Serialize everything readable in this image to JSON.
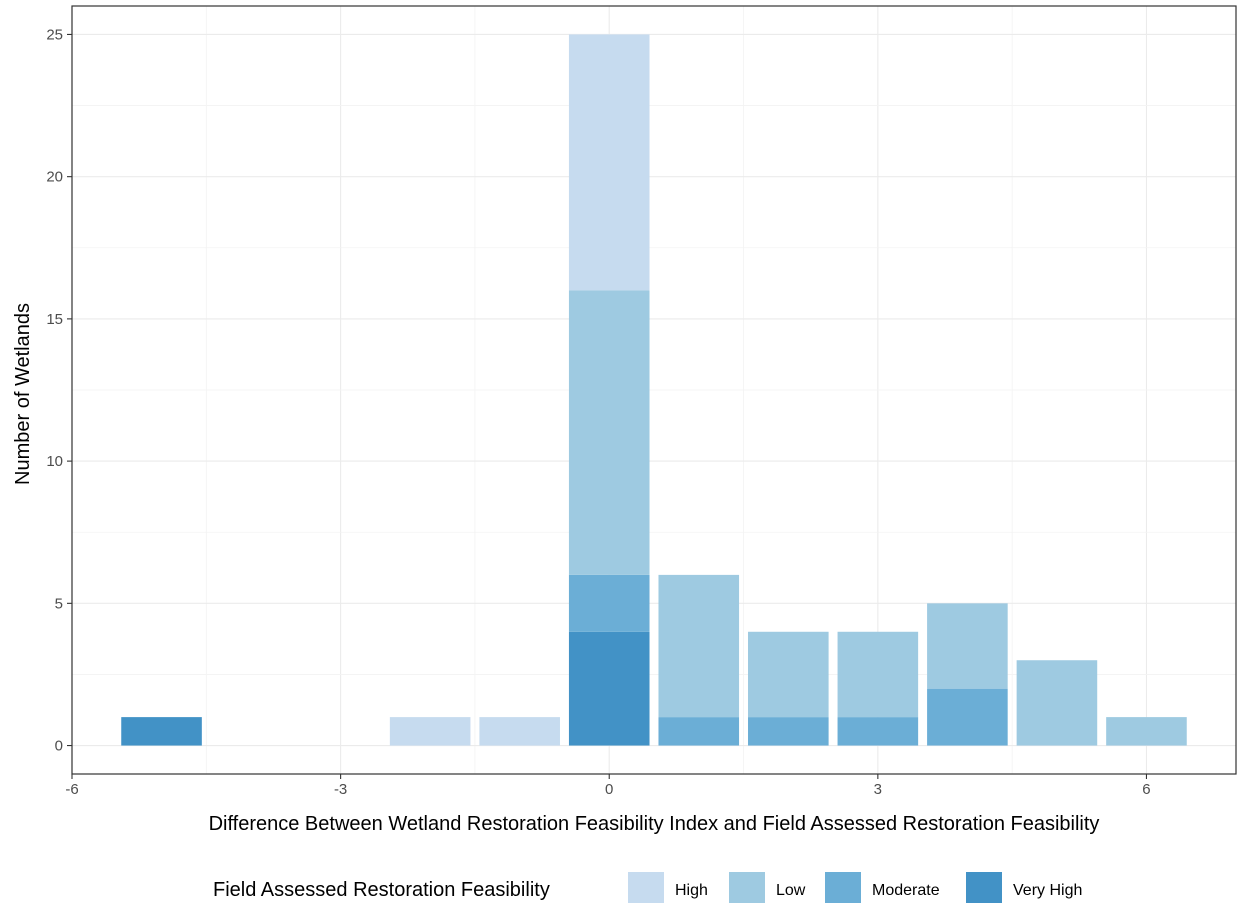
{
  "chart_data": {
    "type": "bar",
    "stacked": true,
    "title": "",
    "xlabel": "Difference Between Wetland Restoration Feasibility Index and Field Assessed Restoration Feasibility",
    "ylabel": "Number of Wetlands",
    "xlim": [
      -6,
      7
    ],
    "ylim": [
      -1,
      26
    ],
    "x_ticks": [
      -6,
      -3,
      0,
      3,
      6
    ],
    "y_ticks": [
      0,
      5,
      10,
      15,
      20,
      25
    ],
    "x": [
      -5,
      -2,
      -1,
      0,
      1,
      2,
      3,
      4,
      5,
      6
    ],
    "series": [
      {
        "name": "Very High",
        "color": "#4292c6",
        "values": [
          1,
          0,
          0,
          4,
          0,
          0,
          0,
          0,
          0,
          0
        ]
      },
      {
        "name": "Moderate",
        "color": "#6baed6",
        "values": [
          0,
          0,
          0,
          2,
          1,
          1,
          1,
          2,
          0,
          0
        ]
      },
      {
        "name": "Low",
        "color": "#9ecae1",
        "values": [
          0,
          0,
          0,
          10,
          5,
          3,
          3,
          3,
          3,
          1
        ]
      },
      {
        "name": "High",
        "color": "#c6dbef",
        "values": [
          0,
          1,
          1,
          9,
          0,
          0,
          0,
          0,
          0,
          0
        ]
      }
    ],
    "legend": {
      "title": "Field Assessed Restoration Feasibility",
      "position": "bottom",
      "order": [
        "High",
        "Low",
        "Moderate",
        "Very High"
      ]
    },
    "grid": true
  }
}
